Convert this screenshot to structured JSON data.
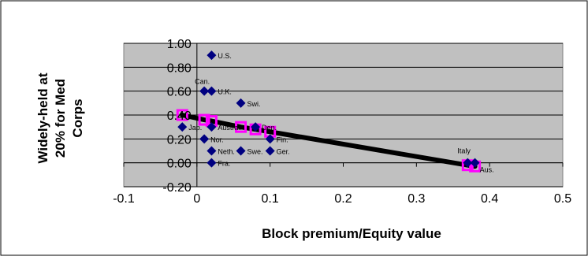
{
  "chart_data": {
    "type": "scatter",
    "xlabel": "Block premium/Equity value",
    "ylabel_lines": [
      "Widely-held at",
      "20% for Med",
      "Corps"
    ],
    "xlim": [
      -0.1,
      0.5
    ],
    "ylim": [
      -0.2,
      1.0
    ],
    "xticks": [
      -0.1,
      0,
      0.1,
      0.2,
      0.3,
      0.4,
      0.5
    ],
    "xtick_labels": [
      "-0.1",
      "0",
      "0.1",
      "0.2",
      "0.3",
      "0.4",
      "0.5"
    ],
    "yticks": [
      -0.2,
      0,
      0.2,
      0.4,
      0.6,
      0.8,
      1.0
    ],
    "ytick_labels": [
      "-0.20",
      "0.00",
      "0.20",
      "0.40",
      "0.60",
      "0.80",
      "1.00"
    ],
    "grid": true,
    "colors": {
      "plot_area": "#c0c0c0",
      "points": "#000080",
      "fit_line": "#000000",
      "fit_markers": "#ff00ff"
    },
    "series": [
      {
        "marker": "diamond",
        "points": [
          {
            "label": "U.S.",
            "x": 0.02,
            "y": 0.9
          },
          {
            "label": "Can.",
            "x": 0.01,
            "y": 0.6
          },
          {
            "label": "U.K.",
            "x": 0.02,
            "y": 0.6
          },
          {
            "label": "Swi.",
            "x": 0.06,
            "y": 0.5
          },
          {
            "label": "Den.",
            "x": 0.08,
            "y": 0.3
          },
          {
            "label": "Jap.",
            "x": -0.02,
            "y": 0.3
          },
          {
            "label": "Austral.",
            "x": 0.02,
            "y": 0.3
          },
          {
            "label": "Fin.",
            "x": 0.1,
            "y": 0.2
          },
          {
            "label": "Nor.",
            "x": 0.01,
            "y": 0.2
          },
          {
            "label": "Neth.",
            "x": 0.02,
            "y": 0.1
          },
          {
            "label": "Swe.",
            "x": 0.06,
            "y": 0.1
          },
          {
            "label": "Ger.",
            "x": 0.1,
            "y": 0.1
          },
          {
            "label": "Fra.",
            "x": 0.02,
            "y": 0.0
          },
          {
            "label": "Italy",
            "x": 0.37,
            "y": 0.0
          },
          {
            "label": "Aus.",
            "x": 0.38,
            "y": 0.0
          }
        ]
      },
      {
        "marker": "square",
        "line": true,
        "points": [
          {
            "x": -0.02,
            "y": 0.4
          },
          {
            "x": 0.01,
            "y": 0.36
          },
          {
            "x": 0.02,
            "y": 0.35
          },
          {
            "x": 0.06,
            "y": 0.3
          },
          {
            "x": 0.08,
            "y": 0.28
          },
          {
            "x": 0.1,
            "y": 0.26
          },
          {
            "x": 0.37,
            "y": -0.02
          },
          {
            "x": 0.38,
            "y": -0.03
          }
        ]
      }
    ]
  }
}
